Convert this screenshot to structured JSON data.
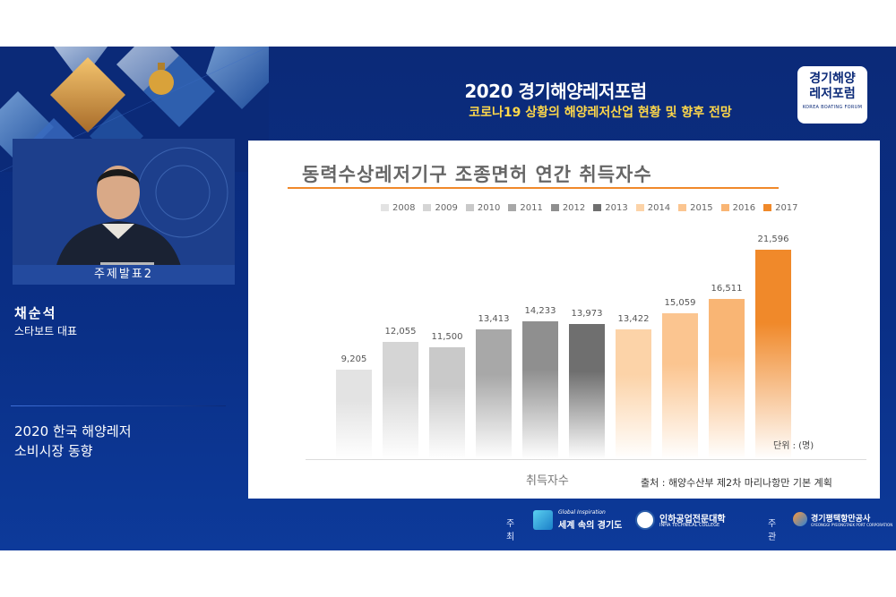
{
  "header": {
    "title": "2020 경기해양레저포럼",
    "subtitle": "코로나19 상황의 해양레저산업 현황 및 향후 전망",
    "logo_line1": "경기해양",
    "logo_line2": "레저포럼",
    "logo_line3": "KOREA BOATING FORUM"
  },
  "presenter": {
    "label": "주제발표2",
    "name": "채순석",
    "title": "스타보트 대표"
  },
  "topic": {
    "line1": "2020 한국 해양레저",
    "line2": "소비시장 동향"
  },
  "slide": {
    "source": "출처 : 해양수산부 제2차 마리나항만 기본 계획"
  },
  "chart_data": {
    "type": "bar",
    "title": "동력수상레저기구 조종면허 연간 취득자수",
    "xlabel": "취득자수",
    "unit_label": "단위 : (명)",
    "categories": [
      "2008",
      "2009",
      "2010",
      "2011",
      "2012",
      "2013",
      "2014",
      "2015",
      "2016",
      "2017"
    ],
    "values": [
      9205,
      12055,
      11500,
      13413,
      14233,
      13973,
      13422,
      15059,
      16511,
      21596
    ],
    "value_labels": [
      "9,205",
      "12,055",
      "11,500",
      "13,413",
      "14,233",
      "13,973",
      "13,422",
      "15,059",
      "16,511",
      "21,596"
    ],
    "colors": [
      "#e3e3e3",
      "#d5d5d5",
      "#c9c9c9",
      "#a8a8a8",
      "#8f8f8f",
      "#6f6f6f",
      "#fcd3a8",
      "#fbc590",
      "#f9b574",
      "#f0892a"
    ],
    "legend_placement": "top",
    "ylim": [
      0,
      24000
    ],
    "grid": false
  },
  "footer": {
    "host_label": "주최",
    "host1_small": "Global Inspiration",
    "host1_name": "세계 속의 경기도",
    "host2_name": "인하공업전문대학",
    "host2_small": "INHA TECHNICAL COLLEGE",
    "organizer_label": "주관",
    "organizer_name": "경기평택항만공사",
    "organizer_small": "GYEONGGI PYEONGTAEK PORT CORPORATION"
  }
}
